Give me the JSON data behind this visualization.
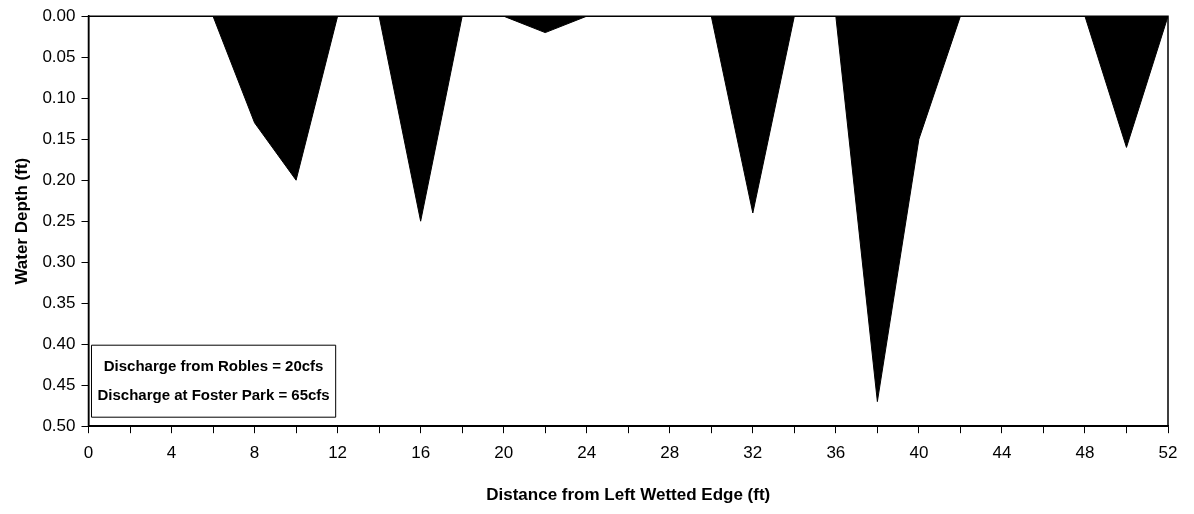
{
  "chart_data": {
    "type": "area",
    "xlabel": "Distance from Left Wetted Edge (ft)",
    "ylabel": "Water Depth (ft)",
    "x": [
      0,
      2,
      4,
      6,
      8,
      10,
      12,
      14,
      16,
      18,
      20,
      22,
      24,
      26,
      28,
      30,
      32,
      34,
      36,
      38,
      40,
      42,
      44,
      46,
      48,
      50,
      52
    ],
    "series": [
      {
        "color": "#000000",
        "values": [
          0,
          0,
          0,
          0,
          0.13,
          0.2,
          0,
          0,
          0.25,
          0,
          0,
          0.02,
          0,
          0,
          0,
          0,
          0.24,
          0,
          0,
          0.47,
          0.15,
          0,
          0,
          0,
          0,
          0.16,
          0
        ]
      }
    ],
    "xlim": [
      0,
      52
    ],
    "xticks": [
      0,
      {
        "value": 2,
        "label": null
      },
      4,
      {
        "value": 6,
        "label": null
      },
      8,
      {
        "value": 10,
        "label": null
      },
      12,
      {
        "value": 14,
        "label": null
      },
      16,
      {
        "value": 18,
        "label": null
      },
      20,
      {
        "value": 22,
        "label": null
      },
      24,
      {
        "value": 26,
        "label": null
      },
      28,
      {
        "value": 30,
        "label": null
      },
      32,
      {
        "value": 34,
        "label": null
      },
      36,
      {
        "value": 38,
        "label": null
      },
      40,
      {
        "value": 42,
        "label": null
      },
      44,
      {
        "value": 46,
        "label": null
      },
      48,
      {
        "value": 50,
        "label": null
      },
      52
    ],
    "ylim": [
      0.5,
      0
    ],
    "yticks": [
      {
        "value": 0,
        "label": "0.00"
      },
      {
        "value": 0.05,
        "label": "0.05"
      },
      {
        "value": 0.1,
        "label": "0.10"
      },
      {
        "value": 0.15,
        "label": "0.15"
      },
      {
        "value": 0.2,
        "label": "0.20"
      },
      {
        "value": 0.25,
        "label": "0.25"
      },
      {
        "value": 0.3,
        "label": "0.30"
      },
      {
        "value": 0.35,
        "label": "0.35"
      },
      {
        "value": 0.4,
        "label": "0.40"
      },
      {
        "value": 0.45,
        "label": "0.45"
      },
      {
        "value": 0.5,
        "label": "0.50"
      }
    ],
    "annotations": [
      "Discharge from Robles = 20cfs",
      "Discharge at Foster Park = 65cfs"
    ],
    "grid": false,
    "legend": false,
    "marker": "none"
  }
}
